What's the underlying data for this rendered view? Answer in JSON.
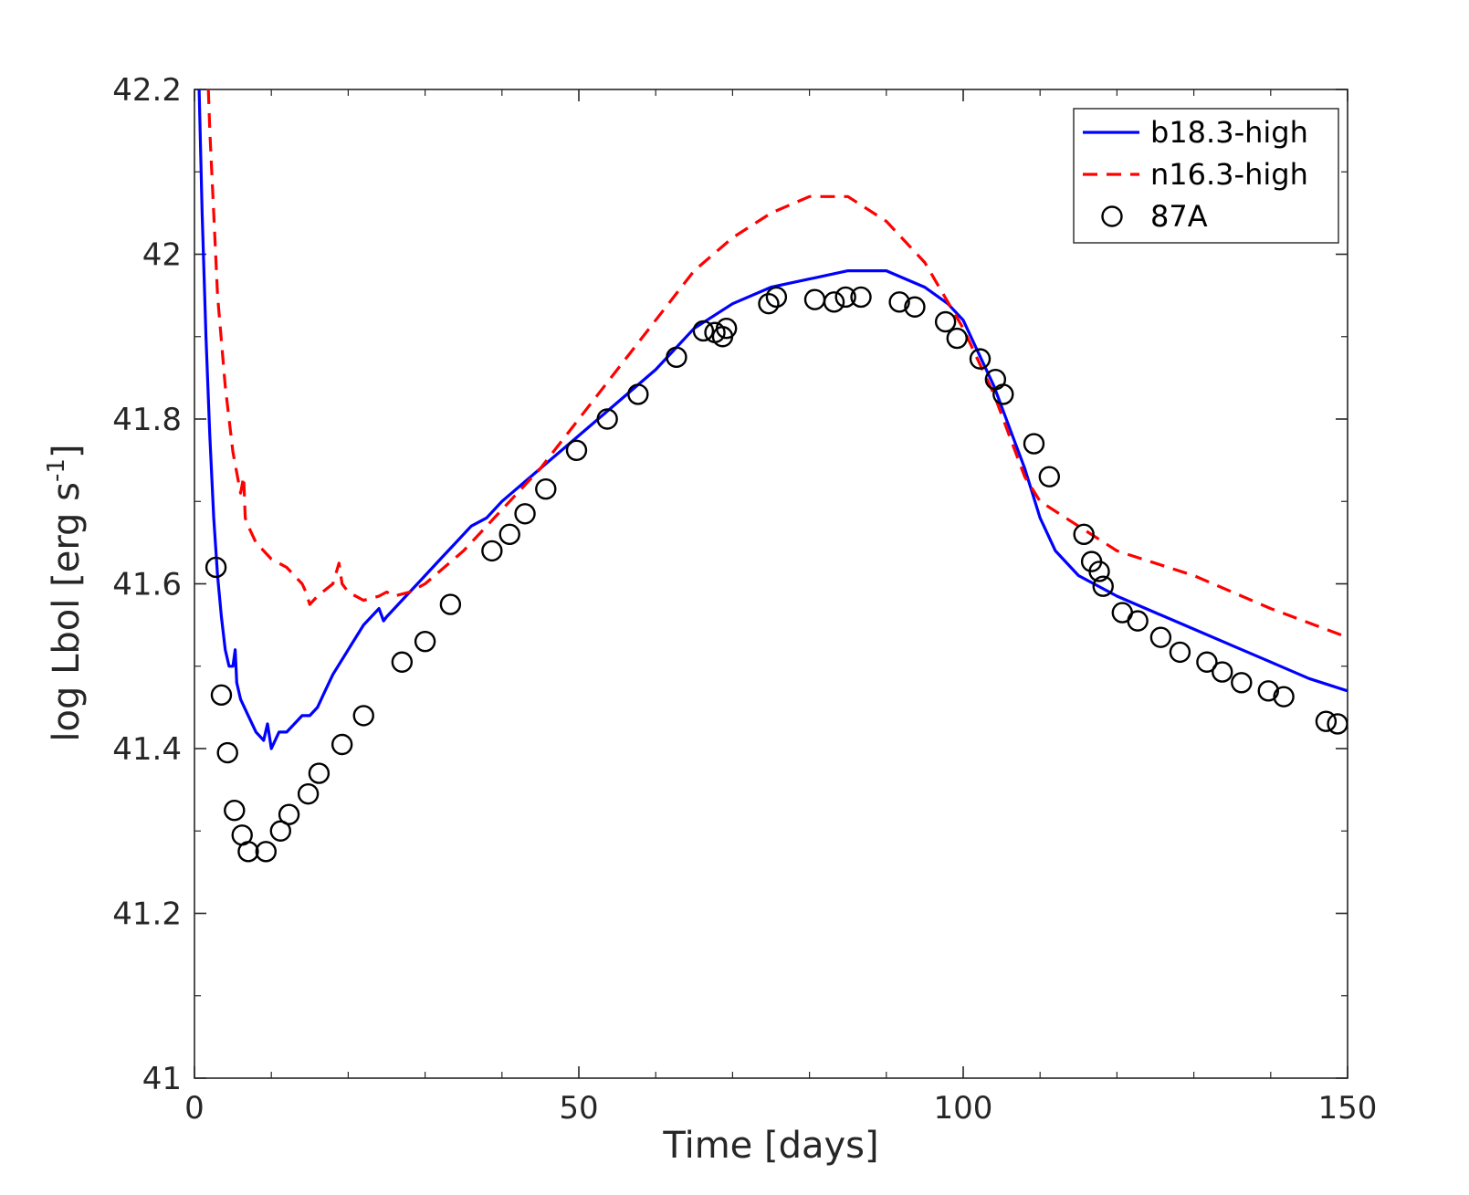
{
  "chart_data": {
    "type": "line",
    "title": "",
    "xlabel": "Time [days]",
    "ylabel_main": "log Lbol [erg s",
    "ylabel_superscript": "-1",
    "ylabel_close": "]",
    "xlim": [
      0,
      150
    ],
    "ylim": [
      41,
      42.2
    ],
    "xticks": [
      0,
      50,
      100,
      150
    ],
    "xtick_labels": [
      "0",
      "50",
      "100",
      "150"
    ],
    "yticks": [
      41,
      41.2,
      41.4,
      41.6,
      41.8,
      42,
      42.2
    ],
    "ytick_labels": [
      "41",
      "41.2",
      "41.4",
      "41.6",
      "41.8",
      "42",
      "42.2"
    ],
    "grid": false,
    "legend_position": "top-right",
    "series": [
      {
        "name": "b18.3-high",
        "style": "solid",
        "color": "#0000ff",
        "x": [
          0.6,
          1.0,
          1.5,
          2.0,
          2.5,
          3.0,
          3.5,
          4.0,
          4.5,
          5.0,
          5.3,
          5.5,
          6.0,
          7.0,
          8.0,
          9.0,
          9.5,
          10.0,
          11.0,
          12.0,
          13.0,
          14.0,
          15.0,
          16.0,
          17.0,
          18.0,
          20.0,
          22.0,
          24.0,
          24.6,
          25.0,
          26.0,
          28.0,
          30.0,
          32.0,
          34.0,
          36.0,
          38.0,
          40.0,
          45.0,
          50.0,
          55.0,
          60.0,
          65.0,
          70.0,
          75.0,
          80.0,
          85.0,
          90.0,
          95.0,
          98.0,
          100.0,
          102.0,
          104.0,
          106.0,
          108.0,
          110.0,
          112.0,
          115.0,
          120.0,
          125.0,
          130.0,
          135.0,
          140.0,
          145.0,
          150.0
        ],
        "y": [
          42.2,
          42.05,
          41.9,
          41.78,
          41.68,
          41.61,
          41.56,
          41.52,
          41.5,
          41.5,
          41.52,
          41.48,
          41.46,
          41.44,
          41.42,
          41.41,
          41.43,
          41.4,
          41.42,
          41.42,
          41.43,
          41.44,
          41.44,
          41.45,
          41.47,
          41.49,
          41.52,
          41.55,
          41.57,
          41.555,
          41.56,
          41.57,
          41.59,
          41.61,
          41.63,
          41.65,
          41.67,
          41.68,
          41.7,
          41.74,
          41.78,
          41.82,
          41.86,
          41.91,
          41.94,
          41.96,
          41.97,
          41.98,
          41.98,
          41.96,
          41.94,
          41.92,
          41.88,
          41.84,
          41.79,
          41.74,
          41.68,
          41.64,
          41.61,
          41.585,
          41.565,
          41.545,
          41.525,
          41.505,
          41.485,
          41.47
        ]
      },
      {
        "name": "n16.3-high",
        "style": "dashed",
        "color": "#ff0000",
        "x": [
          1.8,
          2.0,
          2.5,
          3.0,
          4.0,
          5.0,
          6.0,
          6.4,
          6.6,
          7.0,
          8.0,
          9.0,
          10.0,
          12.0,
          14.0,
          14.5,
          15.0,
          16.0,
          18.0,
          18.8,
          19.2,
          20.0,
          22.0,
          24.0,
          25.0,
          26.0,
          28.0,
          30.0,
          35.0,
          40.0,
          45.0,
          50.0,
          55.0,
          60.0,
          65.0,
          70.0,
          75.0,
          80.0,
          85.0,
          90.0,
          95.0,
          100.0,
          102.0,
          104.0,
          106.0,
          108.0,
          110.0,
          115.0,
          120.0,
          130.0,
          140.0,
          150.0
        ],
        "y": [
          42.2,
          42.15,
          42.05,
          41.95,
          41.84,
          41.76,
          41.71,
          41.73,
          41.68,
          41.67,
          41.65,
          41.64,
          41.63,
          41.62,
          41.6,
          41.59,
          41.575,
          41.585,
          41.6,
          41.625,
          41.6,
          41.59,
          41.58,
          41.585,
          41.59,
          41.585,
          41.59,
          41.6,
          41.64,
          41.69,
          41.74,
          41.8,
          41.86,
          41.92,
          41.98,
          42.02,
          42.05,
          42.07,
          42.07,
          42.04,
          41.99,
          41.91,
          41.87,
          41.83,
          41.78,
          41.73,
          41.7,
          41.67,
          41.64,
          41.61,
          41.57,
          41.535
        ]
      },
      {
        "name": "87A",
        "style": "markers",
        "color": "#000000",
        "x": [
          2.8,
          3.5,
          4.3,
          5.2,
          6.2,
          7.0,
          9.3,
          11.2,
          12.3,
          14.8,
          16.2,
          19.2,
          22.0,
          27.0,
          30.0,
          33.3,
          38.7,
          41.0,
          43.0,
          45.7,
          49.7,
          53.7,
          57.7,
          62.7,
          66.2,
          67.7,
          68.7,
          69.2,
          74.7,
          75.7,
          80.7,
          83.2,
          84.7,
          86.7,
          91.7,
          93.7,
          97.7,
          99.2,
          102.2,
          104.2,
          105.2,
          109.2,
          111.2,
          115.7,
          116.7,
          117.7,
          118.2,
          120.7,
          122.7,
          125.7,
          128.2,
          131.7,
          133.7,
          136.2,
          139.7,
          141.7,
          147.2,
          148.7
        ],
        "y": [
          41.62,
          41.465,
          41.395,
          41.325,
          41.295,
          41.275,
          41.275,
          41.3,
          41.32,
          41.345,
          41.37,
          41.405,
          41.44,
          41.505,
          41.53,
          41.575,
          41.64,
          41.66,
          41.685,
          41.715,
          41.762,
          41.8,
          41.83,
          41.875,
          41.907,
          41.905,
          41.9,
          41.91,
          41.94,
          41.948,
          41.945,
          41.942,
          41.948,
          41.948,
          41.942,
          41.936,
          41.918,
          41.898,
          41.873,
          41.848,
          41.83,
          41.77,
          41.73,
          41.66,
          41.627,
          41.615,
          41.597,
          41.565,
          41.555,
          41.535,
          41.517,
          41.505,
          41.493,
          41.48,
          41.47,
          41.463,
          41.433,
          41.43
        ]
      }
    ]
  }
}
